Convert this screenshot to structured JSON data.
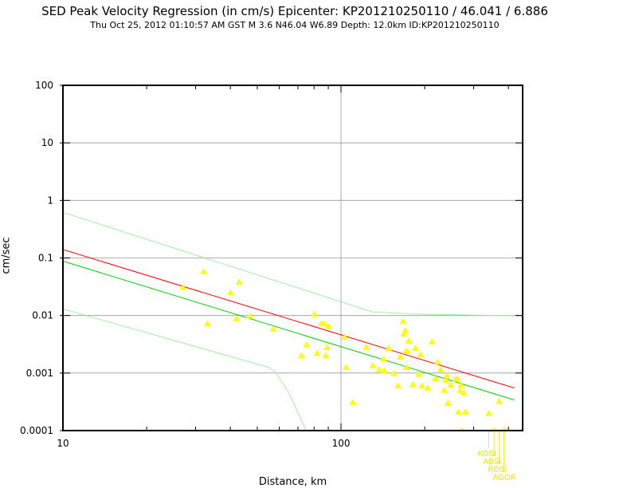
{
  "title": "SED Peak Velocity Regression (in cm/s) Epicenter: KP201210250110 / 46.041 / 6.886",
  "subtitle": "Thu Oct 25, 2012 01:10:57 AM GST   M 3.6   N46.04 W6.89   Depth: 12.0km   ID:KP201210250110",
  "colors": {
    "points": "#ffff00",
    "regression": "#ff0000",
    "fit": "#00cc00",
    "bounds": "#99ee99",
    "grid": "#999999",
    "station_labels": "#e6e600"
  },
  "chart_data": {
    "type": "scatter",
    "title": "SED Peak Velocity Regression (in cm/s) Epicenter: KP201210250110 / 46.041 / 6.886",
    "xlabel": "Distance, km",
    "ylabel": "cm/sec",
    "xscale": "log",
    "yscale": "log",
    "xlim": [
      10,
      450
    ],
    "ylim": [
      0.0001,
      100
    ],
    "x_ticks": [
      "10",
      "100"
    ],
    "y_ticks": [
      "0.0001",
      "0.001",
      "0.01",
      "0.1",
      "1",
      "10",
      "100"
    ],
    "grid": true,
    "legend": "none",
    "lines": [
      {
        "style": "red",
        "points": [
          [
            10,
            0.14
          ],
          [
            420,
            0.00055
          ]
        ]
      },
      {
        "style": "green",
        "points": [
          [
            10,
            0.088
          ],
          [
            420,
            0.00034
          ]
        ]
      },
      {
        "style": "bounds",
        "points": [
          [
            10,
            0.62
          ],
          [
            130,
            0.0115
          ],
          [
            200,
            0.0105
          ],
          [
            450,
            0.0098
          ]
        ]
      },
      {
        "style": "bounds",
        "points": [
          [
            10,
            0.013
          ],
          [
            55,
            0.00125
          ],
          [
            58,
            0.00105
          ],
          [
            65,
            0.00045
          ],
          [
            75,
            0.0001
          ]
        ]
      }
    ],
    "points": [
      [
        27,
        0.031
      ],
      [
        32,
        0.058
      ],
      [
        33,
        0.0072
      ],
      [
        40,
        0.025
      ],
      [
        42,
        0.0088
      ],
      [
        43,
        0.038
      ],
      [
        47,
        0.0098
      ],
      [
        57,
        0.0058
      ],
      [
        72,
        0.002
      ],
      [
        75,
        0.0031
      ],
      [
        80,
        0.0105
      ],
      [
        82,
        0.0022
      ],
      [
        85,
        0.0073
      ],
      [
        87,
        0.0072
      ],
      [
        88,
        0.002
      ],
      [
        89,
        0.0028
      ],
      [
        90,
        0.0065
      ],
      [
        103,
        0.0042
      ],
      [
        104,
        0.00125
      ],
      [
        110,
        0.00031
      ],
      [
        123,
        0.0028
      ],
      [
        130,
        0.00135
      ],
      [
        137,
        0.00115
      ],
      [
        142,
        0.00175
      ],
      [
        143,
        0.0011
      ],
      [
        148,
        0.0027
      ],
      [
        155,
        0.00098
      ],
      [
        160,
        0.0006
      ],
      [
        163,
        0.0019
      ],
      [
        167,
        0.0079
      ],
      [
        168,
        0.0048
      ],
      [
        170,
        0.0055
      ],
      [
        171,
        0.0024
      ],
      [
        172,
        0.00125
      ],
      [
        173,
        0.0024
      ],
      [
        175,
        0.0036
      ],
      [
        181,
        0.00063
      ],
      [
        185,
        0.0027
      ],
      [
        190,
        0.00095
      ],
      [
        193,
        0.0021
      ],
      [
        195,
        0.0006
      ],
      [
        205,
        0.00055
      ],
      [
        212,
        0.0035
      ],
      [
        218,
        0.0008
      ],
      [
        222,
        0.00155
      ],
      [
        228,
        0.00115
      ],
      [
        235,
        0.0005
      ],
      [
        238,
        0.00075
      ],
      [
        240,
        0.0009
      ],
      [
        242,
        0.0003
      ],
      [
        248,
        0.00062
      ],
      [
        258,
        0.00078
      ],
      [
        262,
        0.0008
      ],
      [
        264,
        0.00021
      ],
      [
        268,
        0.0005
      ],
      [
        270,
        0.00062
      ],
      [
        272,
        0.0001
      ],
      [
        276,
        0.00045
      ],
      [
        280,
        0.00021
      ],
      [
        340,
        0.0002
      ],
      [
        355,
        0.0001
      ],
      [
        370,
        0.00032
      ],
      [
        385,
        0.0001
      ]
    ],
    "station_labels": [
      "KOSI",
      "ABSI",
      "ROSI",
      "AGOR"
    ]
  }
}
